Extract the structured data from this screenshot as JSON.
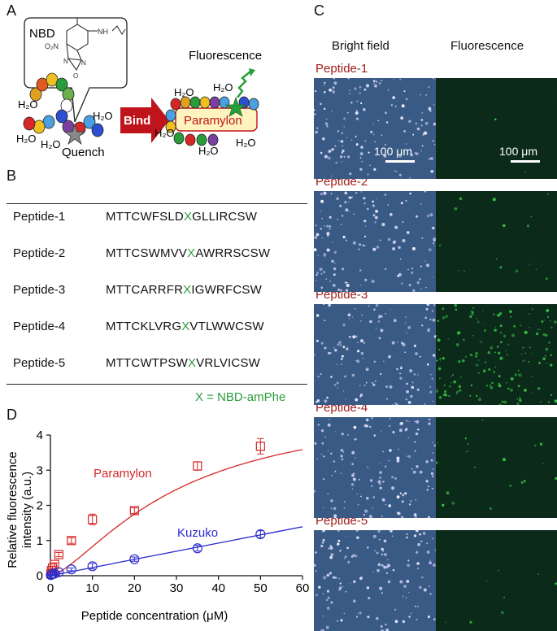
{
  "panels": {
    "A": "A",
    "B": "B",
    "C": "C",
    "D": "D"
  },
  "panelA": {
    "nbd": "NBD",
    "no2": "O₂N",
    "nh": "NH",
    "ring_n": "N",
    "ring_o": "O",
    "ring_n2": "N",
    "quench": "Quench",
    "bind": "Bind",
    "fluorescence": "Fluorescence",
    "paramylon": "Paramylon",
    "h2o": "H₂O"
  },
  "panelB": {
    "peptides": [
      {
        "name": "Peptide-1",
        "pre": "MTTCWFSLD",
        "x": "X",
        "post": "GLLIRCSW"
      },
      {
        "name": "Peptide-2",
        "pre": "MTTCSWMVV",
        "x": "X",
        "post": "AWRRSCSW"
      },
      {
        "name": "Peptide-3",
        "pre": "MTTCARRFR",
        "x": "X",
        "post": "IGWRFCSW"
      },
      {
        "name": "Peptide-4",
        "pre": "MTTCKLVRG",
        "x": "X",
        "post": "VTLWWCSW"
      },
      {
        "name": "Peptide-5",
        "pre": "MTTCWTPSW",
        "x": "X",
        "post": "VRLVICSW"
      }
    ],
    "note": "X = NBD-amPhe"
  },
  "panelC": {
    "col_bright": "Bright field",
    "col_fluor": "Fluorescence",
    "scale": "100 μm",
    "rows": [
      "Peptide-1",
      "Peptide-2",
      "Peptide-3",
      "Peptide-4",
      "Peptide-5"
    ],
    "fluor_density": [
      0.02,
      0.1,
      1.0,
      0.12,
      0.05
    ],
    "colors": {
      "bright_bg": "#3a5a86",
      "fluor_bg": "#0b2a1a",
      "green": "#3dd64a",
      "peptide_red": "#a01c1c"
    }
  },
  "chart_data": {
    "type": "scatter",
    "xlabel": "Peptide concentration (μM)",
    "ylabel": "Relative fluorescence intensity (a.u.)",
    "xlim": [
      0,
      60
    ],
    "ylim": [
      0,
      4
    ],
    "xticks": [
      "0",
      "10",
      "20",
      "30",
      "40",
      "50",
      "60"
    ],
    "yticks": [
      "0",
      "1",
      "2",
      "3",
      "4"
    ],
    "series": [
      {
        "name": "Paramylon",
        "color": "#d62728",
        "marker": "square",
        "x": [
          0.1,
          0.25,
          0.5,
          1,
          2,
          5,
          10,
          20,
          35,
          50
        ],
        "y": [
          0.05,
          0.15,
          0.22,
          0.32,
          0.6,
          1.0,
          1.6,
          1.85,
          3.12,
          3.68
        ],
        "err": [
          0.03,
          0.03,
          0.04,
          0.05,
          0.06,
          0.08,
          0.15,
          0.08,
          0.12,
          0.22
        ],
        "fit": {
          "type": "hill",
          "vmax": 4.9,
          "k": 30,
          "n": 1.45
        }
      },
      {
        "name": "Kuzuko",
        "color": "#2b2bd0",
        "marker": "circle",
        "x": [
          0.1,
          0.25,
          0.5,
          1,
          2,
          5,
          10,
          20,
          35,
          50
        ],
        "y": [
          0.02,
          0.03,
          0.05,
          0.06,
          0.1,
          0.18,
          0.27,
          0.47,
          0.78,
          1.18
        ],
        "err": [
          0.02,
          0.02,
          0.03,
          0.03,
          0.03,
          0.04,
          0.08,
          0.06,
          0.08,
          0.1
        ],
        "fit": {
          "type": "linear",
          "slope": 0.0232,
          "intercept": 0.0
        }
      }
    ]
  }
}
